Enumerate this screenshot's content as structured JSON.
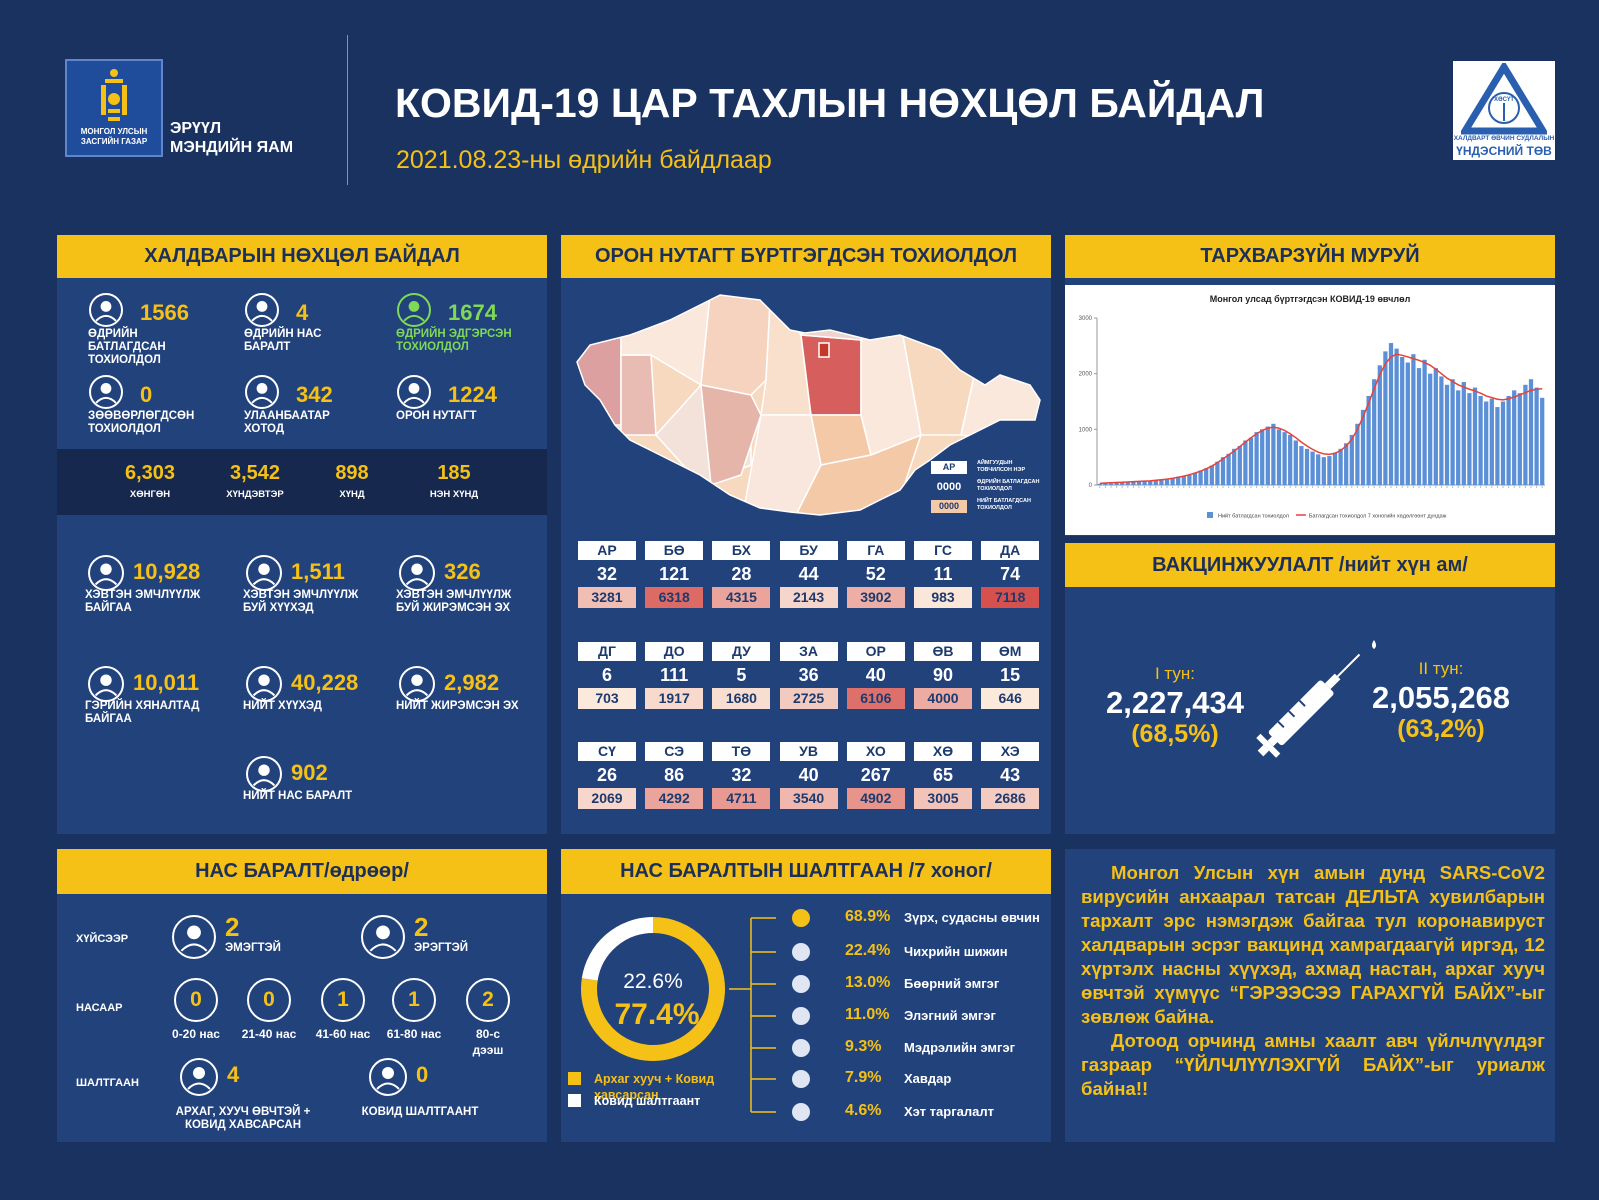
{
  "header": {
    "gov_logo_text": "МОНГОЛ УЛСЫН ЗАСГИЙН ГАЗАР",
    "ministry": "ЭРҮҮЛ МЭНДИЙН ЯАМ",
    "title": "КОВИД-19 ЦАР ТАХЛЫН НӨХЦӨЛ БАЙДАЛ",
    "subtitle": "2021.08.23-ны өдрийн байдлаар",
    "center_abbr": "ХӨСҮТ",
    "center_line1": "ХАЛДВАРТ ӨВЧИН СУДЛАЛЫН",
    "center_line2": "ҮНДЭСНИЙ ТӨВ"
  },
  "infection": {
    "title": "ХАЛДВАРЫН НӨХЦӨЛ БАЙДАЛ",
    "stats": [
      {
        "value": 1566,
        "label": "ӨДРИЙН БАТЛАГДСАН ТОХИОЛДОЛ"
      },
      {
        "value": 4,
        "label": "ӨДРИЙН НАС БАРАЛТ"
      },
      {
        "value": 1674,
        "label": "ӨДРИЙН ЭДГЭРСЭН ТОХИОЛДОЛ"
      },
      {
        "value": 0,
        "label": "ЗӨӨВӨРЛӨГДСӨН ТОХИОЛДОЛ"
      },
      {
        "value": 342,
        "label": "УЛААНБААТАР ХОТОД"
      },
      {
        "value": 1224,
        "label": "ОРОН НУТАГТ"
      }
    ],
    "severity": [
      {
        "value": "6,303",
        "label": "ХӨНГӨН"
      },
      {
        "value": "3,542",
        "label": "ХҮНДЭВТЭР"
      },
      {
        "value": 898,
        "label": "ХҮНД"
      },
      {
        "value": 185,
        "label": "НЭН ХҮНД"
      }
    ],
    "care": [
      {
        "value": "10,928",
        "label": "ХЭВТЭН ЭМЧЛҮҮЛЖ БАЙГАА"
      },
      {
        "value": "1,511",
        "label": "ХЭВТЭН ЭМЧЛҮҮЛЖ БУЙ ХҮҮХЭД"
      },
      {
        "value": 326,
        "label": "ХЭВТЭН ЭМЧЛҮҮЛЖ БУЙ ЖИРЭМСЭН ЭХ"
      },
      {
        "value": "10,011",
        "label": "ГЭРИЙН ХЯНАЛТАД БАЙГАА"
      },
      {
        "value": "40,228",
        "label": "НИЙТ ХҮҮХЭД"
      },
      {
        "value": "2,982",
        "label": "НИЙТ ЖИРЭМСЭН ЭХ"
      },
      {
        "value": 902,
        "label": "НИЙТ НАС БАРАЛТ"
      }
    ]
  },
  "regions": {
    "title": "ОРОН НУТАГТ БҮРТГЭГДСЭН ТОХИОЛДОЛ",
    "legend": {
      "abbr": "АР",
      "abbr_label": "АЙМГУУДЫН ТОВЧИЛСОН НЭР",
      "daily": "0000",
      "daily_label": "ӨДРИЙН БАТЛАГДСАН ТОХИОЛДОЛ",
      "total": "0000",
      "total_label": "НИЙТ БАТЛАГДСАН ТОХИОЛДОЛ"
    },
    "items": [
      {
        "code": "АР",
        "daily": 32,
        "total": 3281
      },
      {
        "code": "БӨ",
        "daily": 121,
        "total": 6318
      },
      {
        "code": "БХ",
        "daily": 28,
        "total": 4315
      },
      {
        "code": "БУ",
        "daily": 44,
        "total": 2143
      },
      {
        "code": "ГА",
        "daily": 52,
        "total": 3902
      },
      {
        "code": "ГС",
        "daily": 11,
        "total": 983
      },
      {
        "code": "ДА",
        "daily": 74,
        "total": 7118
      },
      {
        "code": "ДГ",
        "daily": 6,
        "total": 703
      },
      {
        "code": "ДО",
        "daily": 111,
        "total": 1917
      },
      {
        "code": "ДУ",
        "daily": 5,
        "total": 1680
      },
      {
        "code": "ЗА",
        "daily": 36,
        "total": 2725
      },
      {
        "code": "ОР",
        "daily": 40,
        "total": 6106
      },
      {
        "code": "ӨВ",
        "daily": 90,
        "total": 4000
      },
      {
        "code": "ӨМ",
        "daily": 15,
        "total": 646
      },
      {
        "code": "СҮ",
        "daily": 26,
        "total": 2069
      },
      {
        "code": "СЭ",
        "daily": 86,
        "total": 4292
      },
      {
        "code": "ТӨ",
        "daily": 32,
        "total": 4711
      },
      {
        "code": "УВ",
        "daily": 40,
        "total": 3540
      },
      {
        "code": "ХО",
        "daily": 267,
        "total": 4902
      },
      {
        "code": "ХӨ",
        "daily": 65,
        "total": 3005
      },
      {
        "code": "ХЭ",
        "daily": 43,
        "total": 2686
      }
    ]
  },
  "curve_panel": {
    "title": "ТАРХВАРЗҮЙН МУРУЙ"
  },
  "chart_data": [
    {
      "type": "bar",
      "title": "Монгол улсад бүртгэгдсэн КОВИД-19 өвчлөл",
      "series": [
        {
          "name": "Нийт батлагдсан тохиолдол",
          "color": "#5b8fd6",
          "values": [
            20,
            30,
            25,
            40,
            45,
            50,
            60,
            70,
            65,
            80,
            90,
            100,
            110,
            130,
            150,
            160,
            180,
            220,
            260,
            300,
            350,
            420,
            500,
            560,
            650,
            700,
            800,
            850,
            950,
            1000,
            1050,
            1100,
            1000,
            950,
            900,
            800,
            700,
            650,
            600,
            550,
            500,
            520,
            580,
            650,
            750,
            900,
            1100,
            1350,
            1600,
            1900,
            2150,
            2400,
            2550,
            2450,
            2300,
            2200,
            2350,
            2100,
            2250,
            2000,
            2100,
            1950,
            1800,
            1900,
            1700,
            1850,
            1650,
            1750,
            1600,
            1500,
            1550,
            1400,
            1500,
            1600,
            1700,
            1650,
            1800,
            1900,
            1750,
            1566
          ]
        },
        {
          "name": "Батлагдсан тохиолдол 7 хоногийн хөдөлгөөнт дундаж",
          "type": "line",
          "color": "#e8413a",
          "values": [
            30,
            35,
            40,
            45,
            50,
            55,
            60,
            65,
            70,
            75,
            85,
            95,
            105,
            120,
            140,
            160,
            185,
            215,
            250,
            290,
            340,
            400,
            470,
            540,
            610,
            690,
            770,
            850,
            920,
            980,
            1020,
            1040,
            1020,
            980,
            920,
            850,
            770,
            700,
            640,
            590,
            560,
            550,
            570,
            620,
            700,
            820,
            1000,
            1220,
            1470,
            1730,
            1980,
            2180,
            2300,
            2350,
            2330,
            2300,
            2270,
            2240,
            2200,
            2150,
            2080,
            2000,
            1920,
            1860,
            1800,
            1760,
            1720,
            1690,
            1650,
            1600,
            1570,
            1540,
            1530,
            1550,
            1580,
            1620,
            1660,
            1700,
            1720,
            1730
          ]
        }
      ],
      "ylim": [
        0,
        3000
      ],
      "yticks": [
        0,
        1000,
        2000,
        3000
      ]
    },
    {
      "type": "pie",
      "title": "НАС БАРАЛТЫН ШАЛТГААН /7 хоног/",
      "categories": [
        "Архаг хууч + Ковид хавсарсан",
        "Ковид шалтгаант"
      ],
      "values": [
        77.4,
        22.6
      ],
      "value_labels": [
        "77.4%",
        "22.6%"
      ],
      "colors": [
        "#f5c116",
        "#ffffff"
      ]
    }
  ],
  "vaccination": {
    "title": "ВАКЦИНЖУУЛАЛТ /нийт хүн ам/",
    "doses": [
      {
        "label": "I тун:",
        "value": "2,227,434",
        "percent": "(68,5%)"
      },
      {
        "label": "II тун:",
        "value": "2,055,268",
        "percent": "(63,2%)"
      }
    ]
  },
  "deaths": {
    "title": "НАС БАРАЛТ/өдрөөр/",
    "by_sex": {
      "label": "ХҮЙСЭЭР",
      "items": [
        {
          "value": 2,
          "label": "ЭМЭГТЭЙ"
        },
        {
          "value": 2,
          "label": "ЭРЭГТЭЙ"
        }
      ]
    },
    "by_age": {
      "label": "НАСААР",
      "items": [
        {
          "value": 0,
          "label": "0-20 нас"
        },
        {
          "value": 0,
          "label": "21-40 нас"
        },
        {
          "value": 1,
          "label": "41-60 нас"
        },
        {
          "value": 1,
          "label": "61-80 нас"
        },
        {
          "value": 2,
          "label": "80-с дээш"
        }
      ]
    },
    "by_cause": {
      "label": "ШАЛТГААН",
      "items": [
        {
          "value": 4,
          "label": "АРХАГ, ХУУЧ ӨВЧТЭЙ + КОВИД ХАВСАРСАН"
        },
        {
          "value": 0,
          "label": "КОВИД ШАЛТГААНТ"
        }
      ]
    }
  },
  "comorbidities": [
    {
      "percent": "68.9%",
      "name": "Зүрх, судасны өвчин"
    },
    {
      "percent": "22.4%",
      "name": "Чихрийн шижин"
    },
    {
      "percent": "13.0%",
      "name": "Бөөрний эмгэг"
    },
    {
      "percent": "11.0%",
      "name": "Элэгний эмгэг"
    },
    {
      "percent": "9.3%",
      "name": "Мэдрэлийн эмгэг"
    },
    {
      "percent": "7.9%",
      "name": "Хавдар"
    },
    {
      "percent": "4.6%",
      "name": "Хэт таргалалт"
    }
  ],
  "advisory": [
    "Монгол Улсын хүн амын дунд SARS-CoV2 вирусийн анхаарал татсан ДЕЛЬТА хувилбарын тархалт эрс нэмэгдэж байгаа тул коронавируст халдварын эсрэг вакцинд хамрагдаагүй иргэд, 12 хүртэлх насны хүүхэд, ахмад настан, архаг хууч өвчтэй хүмүүс “ГЭРЭЭСЭЭ ГАРАХГҮЙ БАЙХ”-ыг зөвлөж байна.",
    "Дотоод орчинд амны хаалт авч үйлчлүүлдэг газраар “ҮЙЛЧЛҮҮЛЭХГҮЙ БАЙХ”-ыг уриалж байна!!"
  ]
}
